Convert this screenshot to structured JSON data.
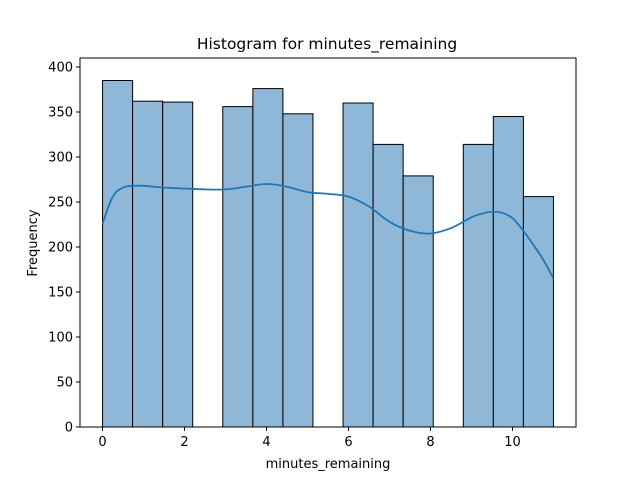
{
  "chart_data": {
    "type": "bar",
    "title": "Histogram for minutes_remaining",
    "xlabel": "minutes_remaining",
    "ylabel": "Frequency",
    "xlim": [
      -0.55,
      11.55
    ],
    "ylim": [
      0,
      410
    ],
    "xticks": [
      0,
      2,
      4,
      6,
      8,
      10
    ],
    "yticks": [
      0,
      50,
      100,
      150,
      200,
      250,
      300,
      350,
      400
    ],
    "grid": false,
    "bars": [
      {
        "x0": 0.0,
        "x1": 0.733,
        "value": 385
      },
      {
        "x0": 0.733,
        "x1": 1.467,
        "value": 362
      },
      {
        "x0": 1.467,
        "x1": 2.2,
        "value": 361
      },
      {
        "x0": 2.2,
        "x1": 2.933,
        "value": 0
      },
      {
        "x0": 2.933,
        "x1": 3.667,
        "value": 356
      },
      {
        "x0": 3.667,
        "x1": 4.4,
        "value": 376
      },
      {
        "x0": 4.4,
        "x1": 5.133,
        "value": 348
      },
      {
        "x0": 5.133,
        "x1": 5.867,
        "value": 0
      },
      {
        "x0": 5.867,
        "x1": 6.6,
        "value": 360
      },
      {
        "x0": 6.6,
        "x1": 7.333,
        "value": 314
      },
      {
        "x0": 7.333,
        "x1": 8.067,
        "value": 279
      },
      {
        "x0": 8.067,
        "x1": 8.8,
        "value": 0
      },
      {
        "x0": 8.8,
        "x1": 9.533,
        "value": 314
      },
      {
        "x0": 9.533,
        "x1": 10.267,
        "value": 345
      },
      {
        "x0": 10.267,
        "x1": 11.0,
        "value": 256
      }
    ],
    "kde": {
      "x": [
        0,
        0.25,
        0.5,
        0.75,
        1,
        1.5,
        2,
        2.5,
        3,
        3.5,
        4,
        4.5,
        5,
        5.5,
        6,
        6.5,
        7,
        7.5,
        8,
        8.5,
        9,
        9.25,
        9.5,
        9.75,
        10,
        10.25,
        10.5,
        10.75,
        11
      ],
      "y": [
        226,
        256,
        266,
        268,
        268,
        266,
        265,
        264,
        264,
        267,
        270,
        267,
        261,
        259,
        256,
        245,
        228,
        218,
        215,
        221,
        233,
        237,
        239,
        238,
        232,
        219,
        203,
        186,
        165
      ]
    },
    "colors": {
      "bar_fill": "#8fb8d8",
      "bar_edge": "#000000",
      "kde_line": "#1f77b4"
    }
  }
}
